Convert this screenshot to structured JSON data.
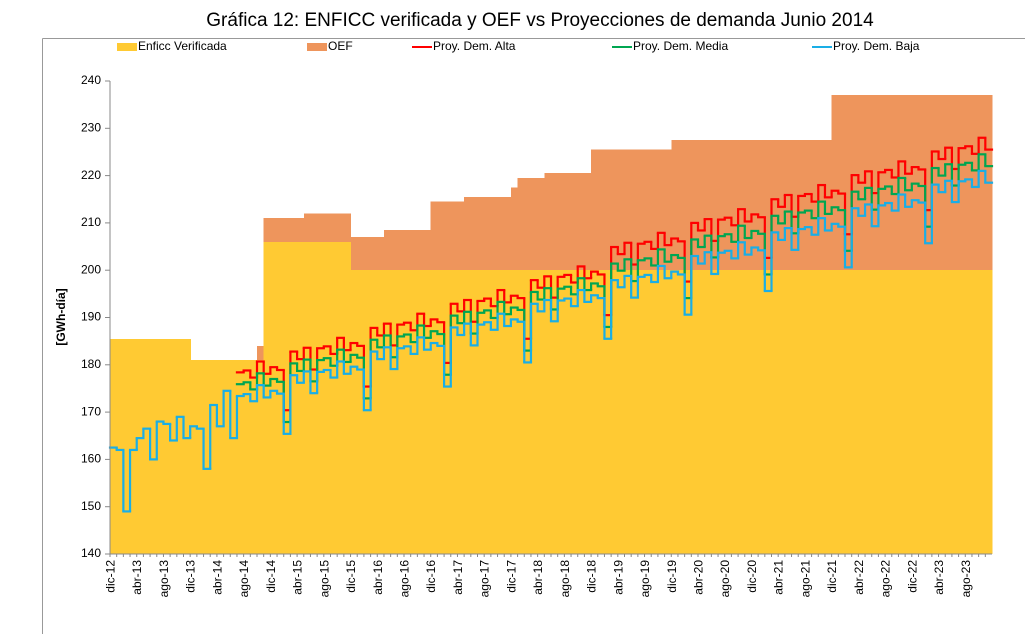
{
  "chart_data": {
    "type": "line",
    "step": true,
    "title": "Gráfica 12: ENFICC verificada y OEF vs Proyecciones de demanda Junio 2014",
    "y_label": "[GWh-día]",
    "ylim": [
      140,
      240
    ],
    "yticks": [
      140,
      150,
      160,
      170,
      180,
      190,
      200,
      210,
      220,
      230,
      240
    ],
    "grid": false,
    "legend": "top",
    "categories": [
      "dic-12",
      null,
      null,
      null,
      "abr-13",
      null,
      null,
      null,
      "ago-13",
      null,
      null,
      null,
      "dic-13",
      null,
      null,
      null,
      "abr-14",
      null,
      null,
      null,
      "ago-14",
      null,
      null,
      null,
      "dic-14",
      null,
      null,
      null,
      "abr-15",
      null,
      null,
      null,
      "ago-15",
      null,
      null,
      null,
      "dic-15",
      null,
      null,
      null,
      "abr-16",
      null,
      null,
      null,
      "ago-16",
      null,
      null,
      null,
      "dic-16",
      null,
      null,
      null,
      "abr-17",
      null,
      null,
      null,
      "ago-17",
      null,
      null,
      null,
      "dic-17",
      null,
      null,
      null,
      "abr-18",
      null,
      null,
      null,
      "ago-18",
      null,
      null,
      null,
      "dic-18",
      null,
      null,
      null,
      "abr-19",
      null,
      null,
      null,
      "ago-19",
      null,
      null,
      null,
      "dic-19",
      null,
      null,
      null,
      "abr-20",
      null,
      null,
      null,
      "ago-20",
      null,
      null,
      null,
      "dic-20",
      null,
      null,
      null,
      "abr-21",
      null,
      null,
      null,
      "ago-21",
      null,
      null,
      null,
      "dic-21",
      null,
      null,
      null,
      "abr-22",
      null,
      null,
      null,
      "ago-22",
      null,
      null,
      null,
      "dic-22",
      null,
      null,
      null,
      "abr-23",
      null,
      null,
      null,
      "ago-23",
      null,
      null,
      null
    ],
    "series": [
      {
        "name": "Enficc Verificada",
        "type": "area",
        "color": "#FFCA33",
        "values": [
          185.5,
          185.5,
          185.5,
          185.5,
          185.5,
          185.5,
          185.5,
          185.5,
          185.5,
          185.5,
          185.5,
          185.5,
          181,
          181,
          181,
          181,
          181,
          181,
          181,
          181,
          181,
          181,
          181,
          206,
          206,
          206,
          206,
          206,
          206,
          206,
          206,
          206,
          206,
          206,
          206,
          206,
          200,
          200,
          200,
          200,
          200,
          200,
          200,
          200,
          200,
          200,
          200,
          200,
          200,
          200,
          200,
          200,
          200,
          200,
          200,
          200,
          200,
          200,
          200,
          200,
          200,
          200,
          200,
          200,
          200,
          200,
          200,
          200,
          200,
          200,
          200,
          200,
          200,
          200,
          200,
          200,
          200,
          200,
          200,
          200,
          200,
          200,
          200,
          200,
          200,
          200,
          200,
          200,
          200,
          200,
          200,
          200,
          200,
          200,
          200,
          200,
          200,
          200,
          200,
          200,
          200,
          200,
          200,
          200,
          200,
          200,
          200,
          200,
          200,
          200,
          200,
          200,
          200,
          200,
          200,
          200,
          200,
          200,
          200,
          200,
          200,
          200,
          200,
          200,
          200,
          200,
          200,
          200,
          200,
          200,
          200,
          200
        ]
      },
      {
        "name": "OEF",
        "type": "area",
        "color": "#EE955C",
        "values": [
          185.5,
          185.5,
          185.5,
          185.5,
          185.5,
          185.5,
          185.5,
          185.5,
          185.5,
          185.5,
          185.5,
          185.5,
          181,
          181,
          181,
          181,
          181,
          181,
          181,
          181,
          181,
          181,
          184,
          211,
          211,
          211,
          211,
          211,
          211,
          212,
          212,
          212,
          212,
          212,
          212,
          212,
          207,
          207,
          207,
          207,
          207,
          208.5,
          208.5,
          208.5,
          208.5,
          208.5,
          208.5,
          208.5,
          214.5,
          214.5,
          214.5,
          214.5,
          214.5,
          215.5,
          215.5,
          215.5,
          215.5,
          215.5,
          215.5,
          215.5,
          217.5,
          219.5,
          219.5,
          219.5,
          219.5,
          220.5,
          220.5,
          220.5,
          220.5,
          220.5,
          220.5,
          220.5,
          225.5,
          225.5,
          225.5,
          225.5,
          225.5,
          225.5,
          225.5,
          225.5,
          225.5,
          225.5,
          225.5,
          225.5,
          227.5,
          227.5,
          227.5,
          227.5,
          227.5,
          227.5,
          227.5,
          227.5,
          227.5,
          227.5,
          227.5,
          227.5,
          227.5,
          227.5,
          227.5,
          227.5,
          227.5,
          227.5,
          227.5,
          227.5,
          227.5,
          227.5,
          227.5,
          227.5,
          237,
          237,
          237,
          237,
          237,
          237,
          237,
          237,
          237,
          237,
          237,
          237,
          237,
          237,
          237,
          237,
          237,
          237,
          237,
          237,
          237,
          237,
          237,
          237
        ]
      },
      {
        "name": "Proy. Dem. Alta",
        "type": "line",
        "color": "#FF0000",
        "values": [
          null,
          null,
          null,
          null,
          null,
          null,
          null,
          null,
          null,
          null,
          null,
          null,
          null,
          null,
          null,
          null,
          null,
          null,
          null,
          178.4,
          178.8,
          177.3,
          180.7,
          178.1,
          179.5,
          178.9,
          170.4,
          182.8,
          181.2,
          183.6,
          179.0,
          183.5,
          183.9,
          182.3,
          185.7,
          183.1,
          184.6,
          184.0,
          175.4,
          187.8,
          186.2,
          188.7,
          184.1,
          188.5,
          188.9,
          187.3,
          190.8,
          188.2,
          189.6,
          189.0,
          180.4,
          192.9,
          191.3,
          193.7,
          189.1,
          193.5,
          194.0,
          192.4,
          195.8,
          193.2,
          194.6,
          194.1,
          185.5,
          197.9,
          196.3,
          198.7,
          194.2,
          198.6,
          199.0,
          197.4,
          200.8,
          198.3,
          199.7,
          199.1,
          190.5,
          204.9,
          203.4,
          205.8,
          201.2,
          205.6,
          206.0,
          204.5,
          207.9,
          205.3,
          206.7,
          206.1,
          197.6,
          210.0,
          208.4,
          210.8,
          206.2,
          210.7,
          211.1,
          209.5,
          212.9,
          210.3,
          211.8,
          211.2,
          202.6,
          215.0,
          213.4,
          215.9,
          211.3,
          215.7,
          216.1,
          214.5,
          218.0,
          215.4,
          216.8,
          216.2,
          207.6,
          220.1,
          218.5,
          220.9,
          216.3,
          220.7,
          221.2,
          219.6,
          223.0,
          220.4,
          221.8,
          221.3,
          212.7,
          225.1,
          223.5,
          225.9,
          221.4,
          225.8,
          226.2,
          224.6,
          228.0,
          225.5
        ]
      },
      {
        "name": "Proy. Dem. Media",
        "type": "line",
        "color": "#00A651",
        "values": [
          null,
          null,
          null,
          null,
          null,
          null,
          null,
          null,
          null,
          null,
          null,
          null,
          null,
          null,
          null,
          null,
          null,
          null,
          null,
          175.9,
          176.3,
          174.8,
          178.2,
          175.6,
          177.0,
          176.4,
          167.9,
          180.3,
          178.7,
          181.1,
          176.5,
          181.0,
          181.4,
          179.8,
          183.2,
          180.6,
          182.1,
          181.5,
          172.9,
          185.3,
          183.7,
          186.2,
          181.6,
          186.0,
          186.4,
          184.8,
          188.3,
          185.7,
          187.1,
          186.5,
          177.9,
          190.4,
          188.8,
          191.2,
          186.6,
          191.0,
          191.5,
          189.9,
          193.3,
          190.7,
          192.1,
          191.6,
          183.0,
          195.4,
          193.8,
          196.2,
          191.7,
          196.1,
          196.5,
          194.9,
          198.3,
          195.8,
          197.2,
          196.6,
          188.0,
          201.4,
          199.9,
          202.3,
          197.7,
          202.1,
          202.5,
          201.0,
          204.4,
          201.8,
          203.2,
          202.6,
          194.1,
          206.5,
          204.9,
          207.3,
          202.7,
          207.2,
          207.6,
          206.0,
          209.4,
          206.8,
          208.3,
          207.7,
          199.1,
          211.5,
          209.9,
          212.4,
          207.8,
          212.2,
          212.6,
          211.0,
          214.5,
          211.9,
          213.3,
          212.7,
          204.1,
          216.6,
          215.0,
          217.4,
          212.8,
          217.2,
          217.7,
          216.1,
          219.5,
          216.9,
          218.3,
          217.8,
          209.2,
          221.6,
          220.0,
          222.4,
          217.9,
          222.3,
          222.7,
          221.1,
          224.5,
          222.0
        ]
      },
      {
        "name": "Proy. Dem. Baja",
        "type": "line",
        "color": "#1AAEE6",
        "values": [
          162.5,
          162,
          149,
          162,
          164.5,
          166.5,
          160,
          168,
          167.5,
          164,
          169,
          164.5,
          167,
          166.5,
          158,
          171.5,
          167,
          174.5,
          164.5,
          173.4,
          173.8,
          172.3,
          175.7,
          173.1,
          174.5,
          173.9,
          165.4,
          177.8,
          176.2,
          178.6,
          174.0,
          178.5,
          178.9,
          177.3,
          180.7,
          178.1,
          179.6,
          179.0,
          170.4,
          182.8,
          181.2,
          183.7,
          179.1,
          183.5,
          183.9,
          182.3,
          185.8,
          183.2,
          184.6,
          184.0,
          175.4,
          187.9,
          186.3,
          188.7,
          184.1,
          188.5,
          189.0,
          187.4,
          190.8,
          188.2,
          189.6,
          189.1,
          180.5,
          192.9,
          191.3,
          193.7,
          189.2,
          193.6,
          194.0,
          192.4,
          195.8,
          193.3,
          194.7,
          194.1,
          185.5,
          197.9,
          196.4,
          198.8,
          194.2,
          198.6,
          199.0,
          197.5,
          200.9,
          198.3,
          199.7,
          199.1,
          190.6,
          203.0,
          201.4,
          203.8,
          199.2,
          203.7,
          204.1,
          202.5,
          205.9,
          203.3,
          204.8,
          204.2,
          195.6,
          208.0,
          206.4,
          208.9,
          204.3,
          208.7,
          209.1,
          207.5,
          211.0,
          208.4,
          209.8,
          209.2,
          200.6,
          213.1,
          211.5,
          213.9,
          209.3,
          213.7,
          214.2,
          212.6,
          216.0,
          213.4,
          214.8,
          214.3,
          205.7,
          218.1,
          216.5,
          218.9,
          214.4,
          218.8,
          219.2,
          217.6,
          221.0,
          218.5
        ]
      }
    ]
  }
}
